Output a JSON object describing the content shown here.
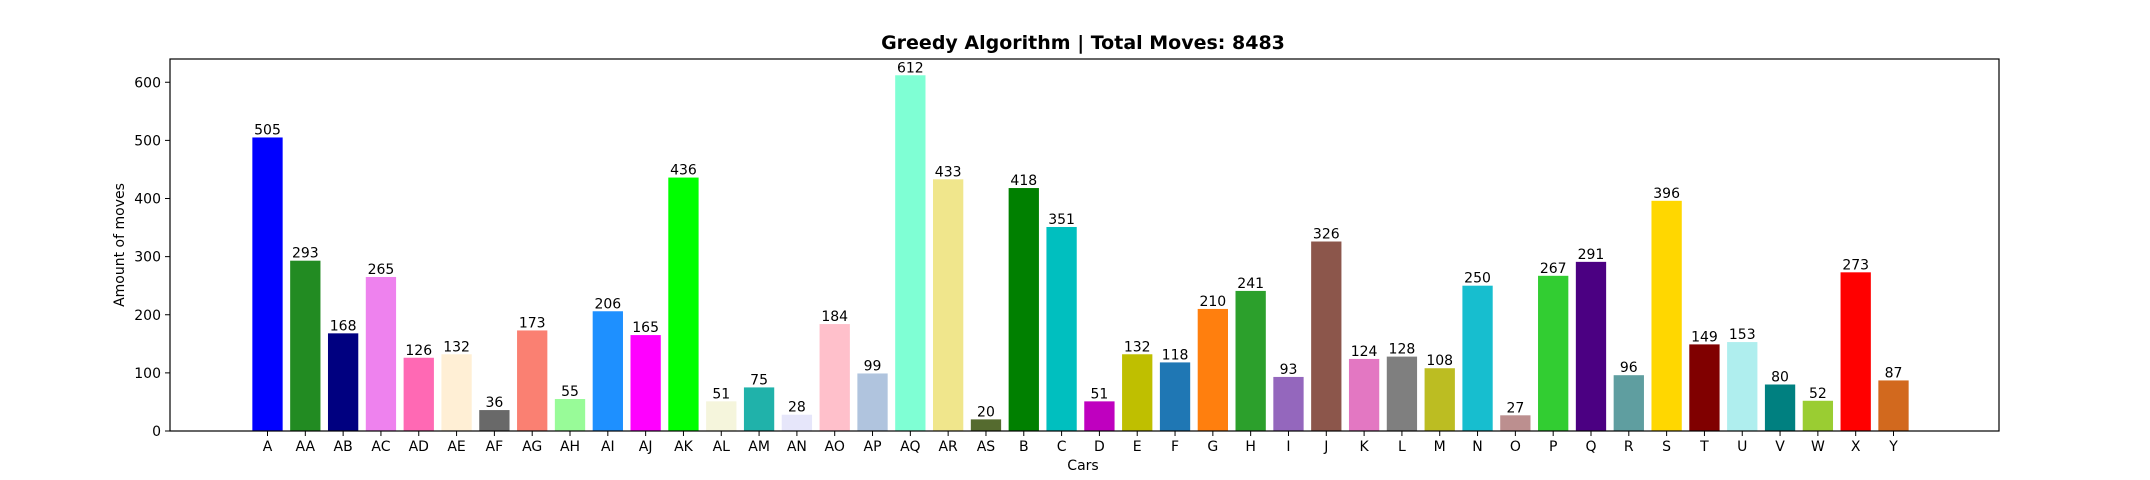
{
  "chart_data": {
    "type": "bar",
    "title": "Greedy Algorithm | Total Moves: 8483",
    "xlabel": "Cars",
    "ylabel": "Amount of moves",
    "ylim": [
      0,
      640
    ],
    "yticks": [
      0,
      100,
      200,
      300,
      400,
      500,
      600
    ],
    "grid": false,
    "legend": "none",
    "categories": [
      "A",
      "AA",
      "AB",
      "AC",
      "AD",
      "AE",
      "AF",
      "AG",
      "AH",
      "AI",
      "AJ",
      "AK",
      "AL",
      "AM",
      "AN",
      "AO",
      "AP",
      "AQ",
      "AR",
      "AS",
      "B",
      "C",
      "D",
      "E",
      "F",
      "G",
      "H",
      "I",
      "J",
      "K",
      "L",
      "M",
      "N",
      "O",
      "P",
      "Q",
      "R",
      "S",
      "T",
      "U",
      "V",
      "W",
      "X",
      "Y"
    ],
    "values": [
      505,
      293,
      168,
      265,
      126,
      132,
      36,
      173,
      55,
      206,
      165,
      436,
      51,
      75,
      28,
      184,
      99,
      612,
      433,
      20,
      418,
      351,
      51,
      132,
      118,
      210,
      241,
      93,
      326,
      124,
      128,
      108,
      250,
      27,
      267,
      291,
      96,
      396,
      149,
      153,
      80,
      52,
      273,
      87
    ],
    "colors": [
      "#0000ff",
      "#228b22",
      "#000080",
      "#ee82ee",
      "#ff69b4",
      "#ffefd5",
      "#696969",
      "#fa8072",
      "#98fb98",
      "#1e90ff",
      "#ff00ff",
      "#00ff00",
      "#f5f5dc",
      "#20b2aa",
      "#e6e6fa",
      "#ffc0cb",
      "#b0c4de",
      "#7fffd4",
      "#f0e68c",
      "#556b2f",
      "#008000",
      "#00bfbf",
      "#bf00bf",
      "#bfbf00",
      "#1f77b4",
      "#ff7f0e",
      "#2ca02c",
      "#9467bd",
      "#8c564b",
      "#e377c2",
      "#7f7f7f",
      "#bcbd22",
      "#17becf",
      "#bc8f8f",
      "#32cd32",
      "#4b0082",
      "#5f9ea0",
      "#ffd700",
      "#800000",
      "#afeeee",
      "#008080",
      "#9acd32",
      "#ff0000",
      "#d2691e"
    ]
  }
}
